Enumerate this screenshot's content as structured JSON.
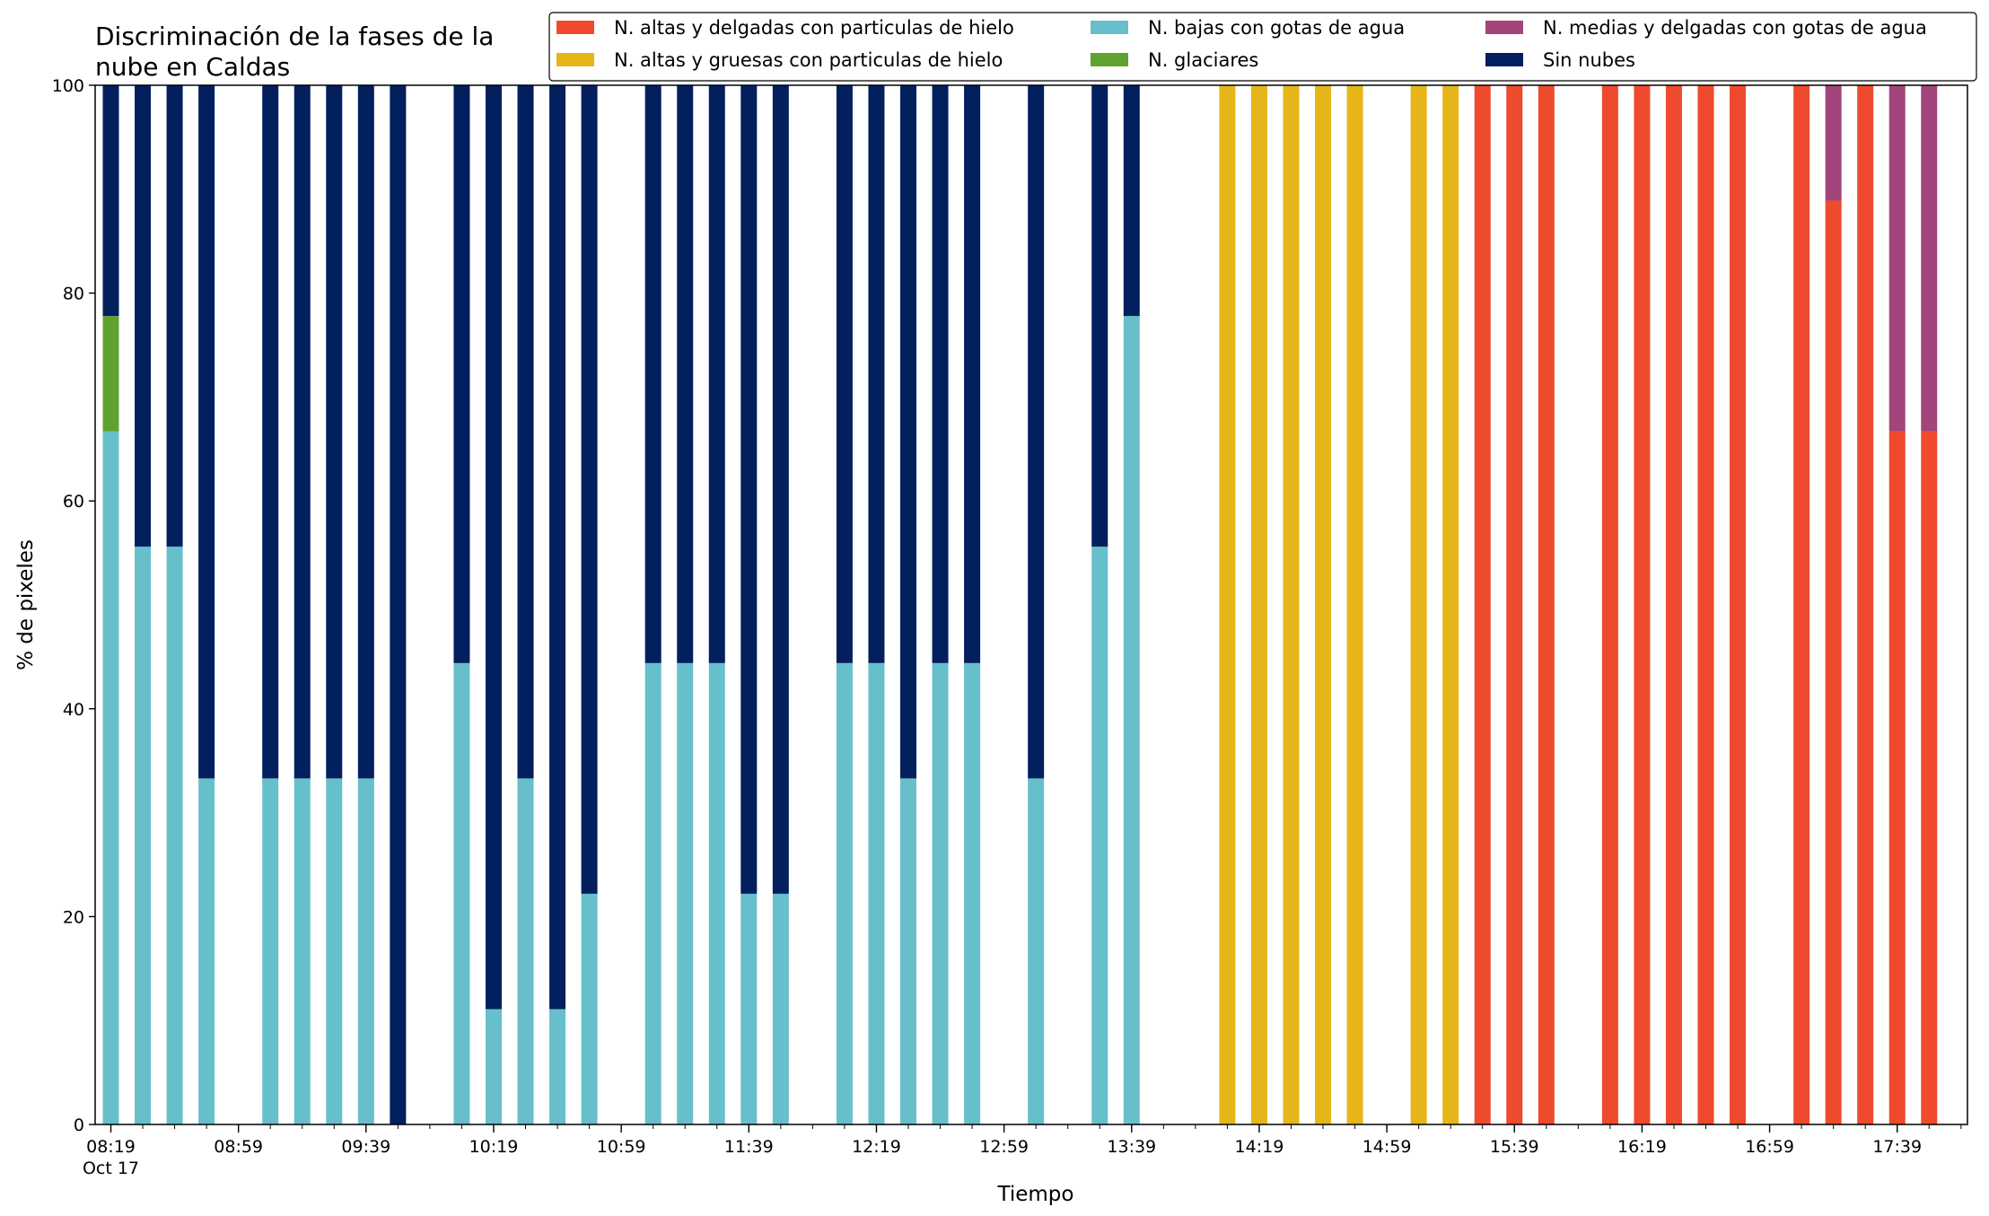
{
  "chart_data": {
    "type": "bar",
    "stacked": true,
    "title": "Discriminación de la fases de la\nnube en Caldas",
    "xlabel": "Tiempo",
    "ylabel": "% de pixeles",
    "ylim": [
      0,
      100
    ],
    "yticks": [
      0,
      20,
      40,
      60,
      80,
      100
    ],
    "x_tick_labels": [
      "08:19",
      "08:59",
      "09:39",
      "10:19",
      "10:59",
      "11:39",
      "12:19",
      "12:59",
      "13:39",
      "14:19",
      "14:59",
      "15:39",
      "16:19",
      "16:59",
      "17:39"
    ],
    "x_date_label": "Oct 17",
    "x_start": "08:19",
    "x_interval_minutes": 10,
    "legend_position": "top-right",
    "grid": false,
    "series": [
      {
        "name": "N. altas y delgadas con particulas de hielo",
        "color": "#ef4a2d"
      },
      {
        "name": "N. altas y gruesas con particulas de hielo",
        "color": "#e6b519"
      },
      {
        "name": "N. bajas con gotas de agua",
        "color": "#67bfcb"
      },
      {
        "name": "N. glaciares",
        "color": "#60a22f"
      },
      {
        "name": "N. medias y delgadas con gotas de agua",
        "color": "#a3447a"
      },
      {
        "name": "Sin nubes",
        "color": "#021f5e"
      }
    ],
    "bars": [
      {
        "time": "08:19",
        "stack": [
          0,
          0,
          66.7,
          11.1,
          0,
          22.2
        ]
      },
      {
        "time": "08:29",
        "stack": [
          0,
          0,
          55.6,
          0,
          0,
          44.4
        ]
      },
      {
        "time": "08:39",
        "stack": [
          0,
          0,
          55.6,
          0,
          0,
          44.4
        ]
      },
      {
        "time": "08:49",
        "stack": [
          0,
          0,
          33.3,
          0,
          0,
          66.7
        ]
      },
      {
        "time": "09:09",
        "stack": [
          0,
          0,
          33.3,
          0,
          0,
          66.7
        ]
      },
      {
        "time": "09:19",
        "stack": [
          0,
          0,
          33.3,
          0,
          0,
          66.7
        ]
      },
      {
        "time": "09:29",
        "stack": [
          0,
          0,
          33.3,
          0,
          0,
          66.7
        ]
      },
      {
        "time": "09:39",
        "stack": [
          0,
          0,
          33.3,
          0,
          0,
          66.7
        ]
      },
      {
        "time": "09:49",
        "stack": [
          0,
          0,
          0,
          0,
          0,
          100
        ]
      },
      {
        "time": "10:09",
        "stack": [
          0,
          0,
          44.4,
          0,
          0,
          55.6
        ]
      },
      {
        "time": "10:19",
        "stack": [
          0,
          0,
          11.1,
          0,
          0,
          88.9
        ]
      },
      {
        "time": "10:29",
        "stack": [
          0,
          0,
          33.3,
          0,
          0,
          66.7
        ]
      },
      {
        "time": "10:39",
        "stack": [
          0,
          0,
          11.1,
          0,
          0,
          88.9
        ]
      },
      {
        "time": "10:49",
        "stack": [
          0,
          0,
          22.2,
          0,
          0,
          77.8
        ]
      },
      {
        "time": "11:09",
        "stack": [
          0,
          0,
          44.4,
          0,
          0,
          55.6
        ]
      },
      {
        "time": "11:19",
        "stack": [
          0,
          0,
          44.4,
          0,
          0,
          55.6
        ]
      },
      {
        "time": "11:29",
        "stack": [
          0,
          0,
          44.4,
          0,
          0,
          55.6
        ]
      },
      {
        "time": "11:39",
        "stack": [
          0,
          0,
          22.2,
          0,
          0,
          77.8
        ]
      },
      {
        "time": "11:49",
        "stack": [
          0,
          0,
          22.2,
          0,
          0,
          77.8
        ]
      },
      {
        "time": "12:09",
        "stack": [
          0,
          0,
          44.4,
          0,
          0,
          55.6
        ]
      },
      {
        "time": "12:19",
        "stack": [
          0,
          0,
          44.4,
          0,
          0,
          55.6
        ]
      },
      {
        "time": "12:29",
        "stack": [
          0,
          0,
          33.3,
          0,
          0,
          66.7
        ]
      },
      {
        "time": "12:39",
        "stack": [
          0,
          0,
          44.4,
          0,
          0,
          55.6
        ]
      },
      {
        "time": "12:49",
        "stack": [
          0,
          0,
          44.4,
          0,
          0,
          55.6
        ]
      },
      {
        "time": "13:09",
        "stack": [
          0,
          0,
          33.3,
          0,
          0,
          66.7
        ]
      },
      {
        "time": "13:29",
        "stack": [
          0,
          0,
          55.6,
          0,
          0,
          44.4
        ]
      },
      {
        "time": "13:39",
        "stack": [
          0,
          0,
          77.8,
          0,
          0,
          22.2
        ]
      },
      {
        "time": "14:09",
        "stack": [
          0,
          100,
          0,
          0,
          0,
          0
        ]
      },
      {
        "time": "14:19",
        "stack": [
          0,
          100,
          0,
          0,
          0,
          0
        ]
      },
      {
        "time": "14:29",
        "stack": [
          0,
          100,
          0,
          0,
          0,
          0
        ]
      },
      {
        "time": "14:39",
        "stack": [
          0,
          100,
          0,
          0,
          0,
          0
        ]
      },
      {
        "time": "14:49",
        "stack": [
          0,
          100,
          0,
          0,
          0,
          0
        ]
      },
      {
        "time": "15:09",
        "stack": [
          0,
          100,
          0,
          0,
          0,
          0
        ]
      },
      {
        "time": "15:19",
        "stack": [
          0,
          100,
          0,
          0,
          0,
          0
        ]
      },
      {
        "time": "15:29",
        "stack": [
          100,
          0,
          0,
          0,
          0,
          0
        ]
      },
      {
        "time": "15:39",
        "stack": [
          100,
          0,
          0,
          0,
          0,
          0
        ]
      },
      {
        "time": "15:49",
        "stack": [
          100,
          0,
          0,
          0,
          0,
          0
        ]
      },
      {
        "time": "16:09",
        "stack": [
          100,
          0,
          0,
          0,
          0,
          0
        ]
      },
      {
        "time": "16:19",
        "stack": [
          100,
          0,
          0,
          0,
          0,
          0
        ]
      },
      {
        "time": "16:29",
        "stack": [
          100,
          0,
          0,
          0,
          0,
          0
        ]
      },
      {
        "time": "16:39",
        "stack": [
          100,
          0,
          0,
          0,
          0,
          0
        ]
      },
      {
        "time": "16:49",
        "stack": [
          100,
          0,
          0,
          0,
          0,
          0
        ]
      },
      {
        "time": "17:09",
        "stack": [
          100,
          0,
          0,
          0,
          0,
          0
        ]
      },
      {
        "time": "17:19",
        "stack": [
          88.9,
          0,
          0,
          0,
          11.1,
          0
        ]
      },
      {
        "time": "17:29",
        "stack": [
          100,
          0,
          0,
          0,
          0,
          0
        ]
      },
      {
        "time": "17:39",
        "stack": [
          66.7,
          0,
          0,
          0,
          33.3,
          0
        ]
      },
      {
        "time": "17:49",
        "stack": [
          66.7,
          0,
          0,
          0,
          33.3,
          0
        ]
      }
    ]
  }
}
